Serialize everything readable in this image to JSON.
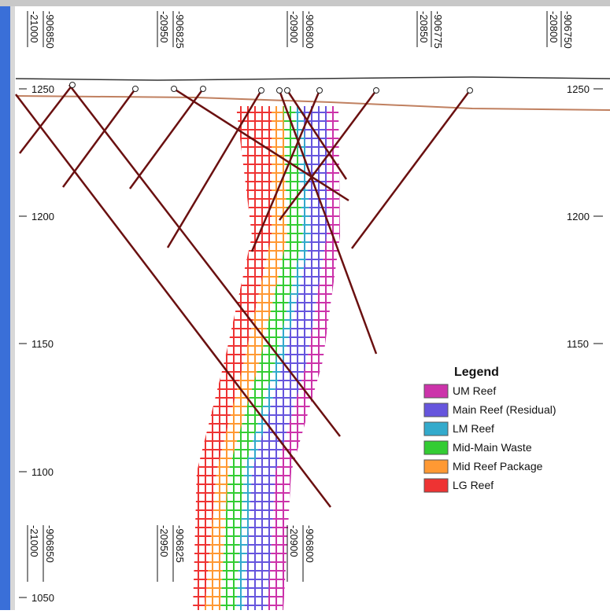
{
  "top_axis": {
    "labels": [
      "-21000",
      "-906850",
      "-20950",
      "-906825",
      "-20900",
      "-906800",
      "-20850",
      "-906775",
      "-20800",
      "-906750"
    ]
  },
  "bottom_axis": {
    "labels": [
      "-21000",
      "-906850",
      "-20950",
      "-906825",
      "-20900",
      "-906800"
    ]
  },
  "left_axis": {
    "labels": [
      "1250",
      "1200",
      "1150",
      "1100",
      "1050"
    ]
  },
  "right_axis": {
    "labels": [
      "1250",
      "1200",
      "1150"
    ]
  },
  "legend": {
    "title": "Legend",
    "items": [
      {
        "label": "UM Reef",
        "color": "#cc33aa"
      },
      {
        "label": "Main Reef (Residual)",
        "color": "#6655dd"
      },
      {
        "label": "LM Reef",
        "color": "#33aacc"
      },
      {
        "label": "Mid-Main Waste",
        "color": "#33cc33"
      },
      {
        "label": "Mid Reef Package",
        "color": "#ff9933"
      },
      {
        "label": "LG Reef",
        "color": "#ee3333"
      }
    ]
  }
}
